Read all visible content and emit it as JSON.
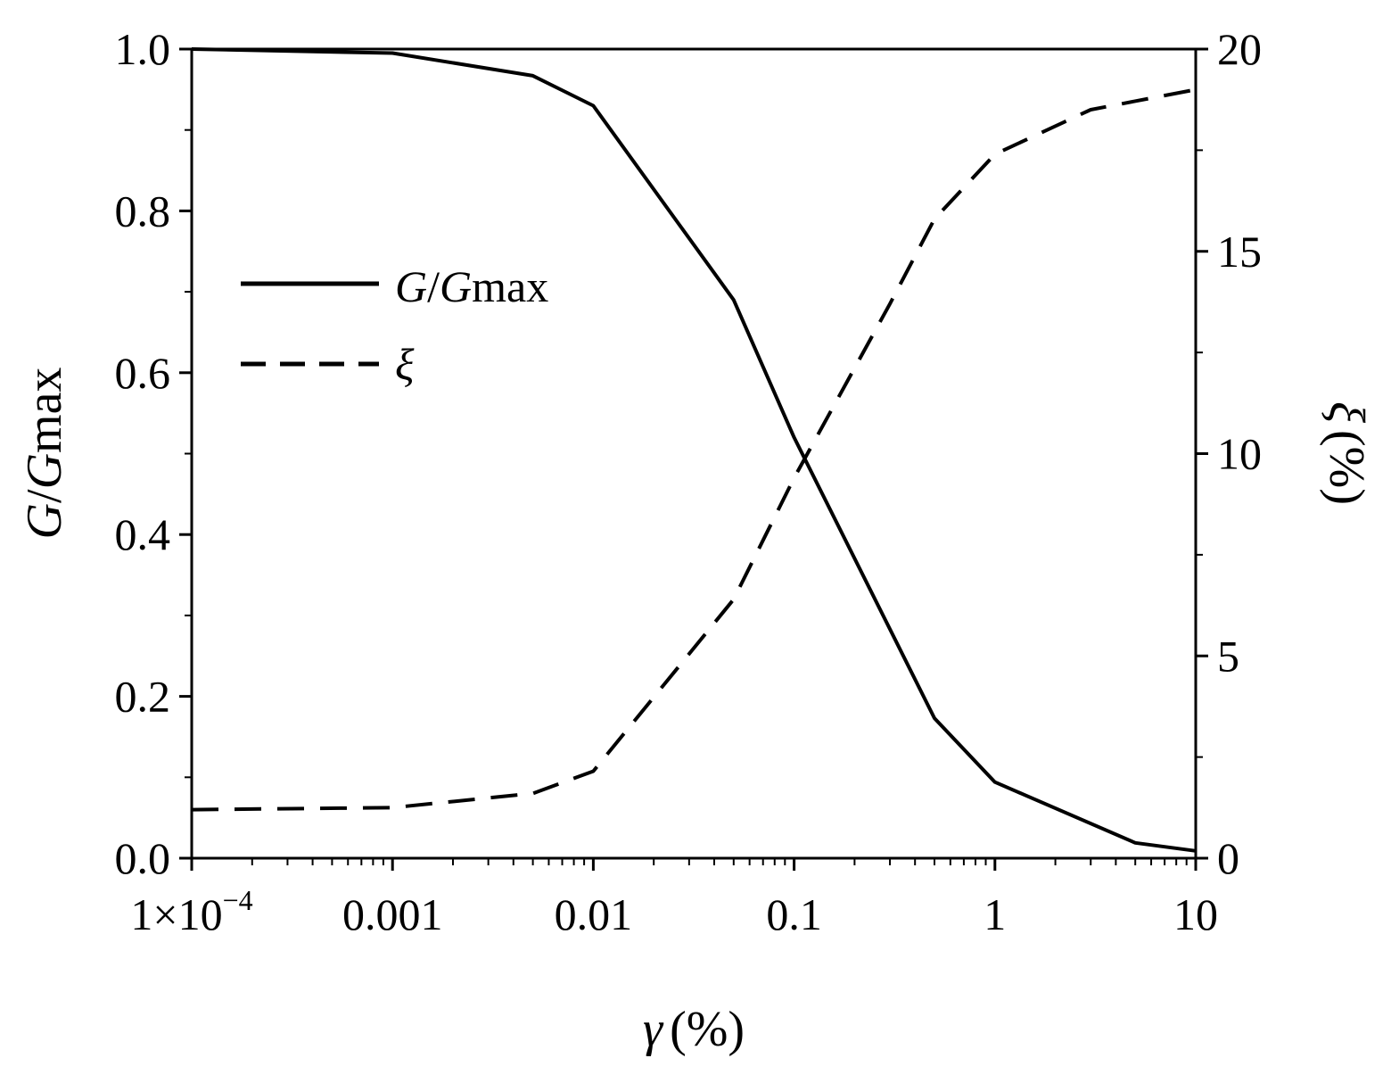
{
  "chart_data": {
    "type": "line",
    "x_scale": "log",
    "xlim": [
      0.0001,
      10
    ],
    "ylim_left": [
      0,
      1.0
    ],
    "ylim_right": [
      0,
      20
    ],
    "xlabel": {
      "symbol": "γ",
      "unit": "(%)"
    },
    "ylabel_left": {
      "italic": "G",
      "sep": "/",
      "italic2": "G",
      "rest": "max"
    },
    "ylabel_right": {
      "symbol": "ξ",
      "unit": "(%)"
    },
    "x_ticks": [
      {
        "value": 0.0001,
        "label": "1×10",
        "sup": "−4"
      },
      {
        "value": 0.001,
        "label": "0.001"
      },
      {
        "value": 0.01,
        "label": "0.01"
      },
      {
        "value": 0.1,
        "label": "0.1"
      },
      {
        "value": 1,
        "label": "1"
      },
      {
        "value": 10,
        "label": "10"
      }
    ],
    "y_left_ticks": [
      {
        "value": 0.0,
        "label": "0.0"
      },
      {
        "value": 0.2,
        "label": "0.2"
      },
      {
        "value": 0.4,
        "label": "0.4"
      },
      {
        "value": 0.6,
        "label": "0.6"
      },
      {
        "value": 0.8,
        "label": "0.8"
      },
      {
        "value": 1.0,
        "label": "1.0"
      }
    ],
    "y_right_ticks": [
      {
        "value": 0,
        "label": "0"
      },
      {
        "value": 5,
        "label": "5"
      },
      {
        "value": 10,
        "label": "10"
      },
      {
        "value": 15,
        "label": "15"
      },
      {
        "value": 20,
        "label": "20"
      }
    ],
    "legend": {
      "position": "upper-left",
      "entries": [
        {
          "italic": "G",
          "sep": "/",
          "italic2": "G",
          "rest": "max",
          "style": "solid"
        },
        {
          "symbol": "ξ",
          "style": "dashed"
        }
      ]
    },
    "series": [
      {
        "axis": "left",
        "style": "solid",
        "x": [
          0.0001,
          0.001,
          0.005,
          0.01,
          0.05,
          0.1,
          0.5,
          1,
          5,
          10
        ],
        "y": [
          1.0,
          0.995,
          0.967,
          0.93,
          0.69,
          0.52,
          0.173,
          0.094,
          0.019,
          0.009
        ]
      },
      {
        "axis": "right",
        "style": "dashed",
        "x": [
          0.0001,
          0.001,
          0.005,
          0.01,
          0.05,
          0.1,
          0.3,
          0.5,
          1,
          3,
          10
        ],
        "y": [
          1.2,
          1.25,
          1.6,
          2.15,
          6.4,
          9.4,
          13.7,
          15.8,
          17.4,
          18.5,
          19.0
        ]
      }
    ]
  }
}
